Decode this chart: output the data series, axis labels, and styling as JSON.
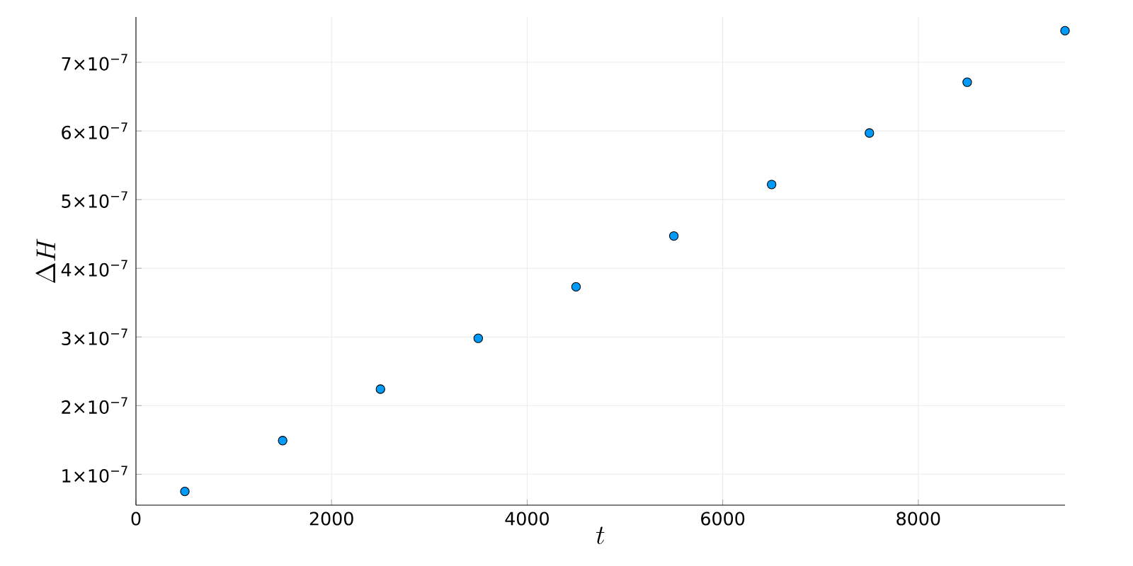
{
  "chart_data": {
    "type": "scatter",
    "xlabel": "t",
    "ylabel": "\\Delta H",
    "x": [
      500,
      1500,
      2500,
      3500,
      4500,
      5500,
      6500,
      7500,
      8500,
      9500
    ],
    "series": [
      {
        "color": "#009af9",
        "values": [
          7.5e-08,
          1.49e-07,
          2.24e-07,
          2.98e-07,
          3.73e-07,
          4.47e-07,
          5.22e-07,
          5.97e-07,
          6.71e-07,
          7.46e-07
        ]
      }
    ],
    "xlim": [
      0,
      9500
    ],
    "ylim": [
      5.5e-08,
      7.66e-07
    ],
    "xticks": [
      0,
      2000,
      4000,
      6000,
      8000
    ],
    "yticks": [
      {
        "value": 1e-07,
        "label": "1×10$^{−7}$"
      },
      {
        "value": 2e-07,
        "label": "2×10$^{−7}$"
      },
      {
        "value": 3e-07,
        "label": "3×10$^{−7}$"
      },
      {
        "value": 4e-07,
        "label": "4×10$^{−7}$"
      },
      {
        "value": 5e-07,
        "label": "5×10$^{−7}$"
      },
      {
        "value": 6e-07,
        "label": "6×10$^{−7}$"
      },
      {
        "value": 7e-07,
        "label": "7×10$^{−7}$"
      }
    ],
    "grid": true,
    "marker": "circle"
  }
}
